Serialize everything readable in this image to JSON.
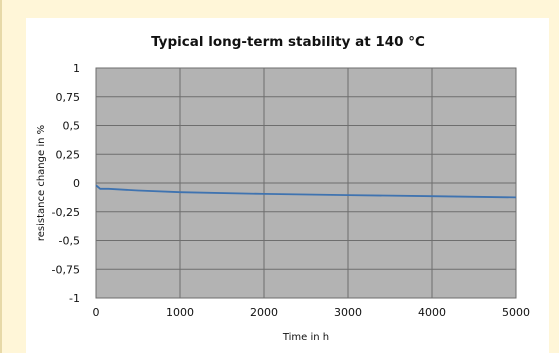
{
  "chart_data": {
    "type": "line",
    "title": "Typical long-term stability at 140 °C",
    "xlabel": "Time in h",
    "ylabel": "resistance change in %",
    "xlim": [
      0,
      5000
    ],
    "ylim": [
      -1,
      1
    ],
    "x_ticks": [
      "0",
      "1000",
      "2000",
      "3000",
      "4000",
      "5000"
    ],
    "y_ticks": [
      "1",
      "0,75",
      "0,5",
      "0,25",
      "0",
      "-0,25",
      "-0,5",
      "-0,75",
      "-1"
    ],
    "grid": true,
    "colors": {
      "plot_background": "#b3b3b3",
      "line": "#3f73b0",
      "frame": "#fff6d8"
    },
    "series": [
      {
        "x": [
          0,
          50,
          150,
          500,
          1000,
          2000,
          3000,
          4000,
          5000
        ],
        "y": [
          -0.02,
          -0.05,
          -0.05,
          -0.065,
          -0.08,
          -0.095,
          -0.105,
          -0.115,
          -0.125
        ]
      }
    ]
  }
}
